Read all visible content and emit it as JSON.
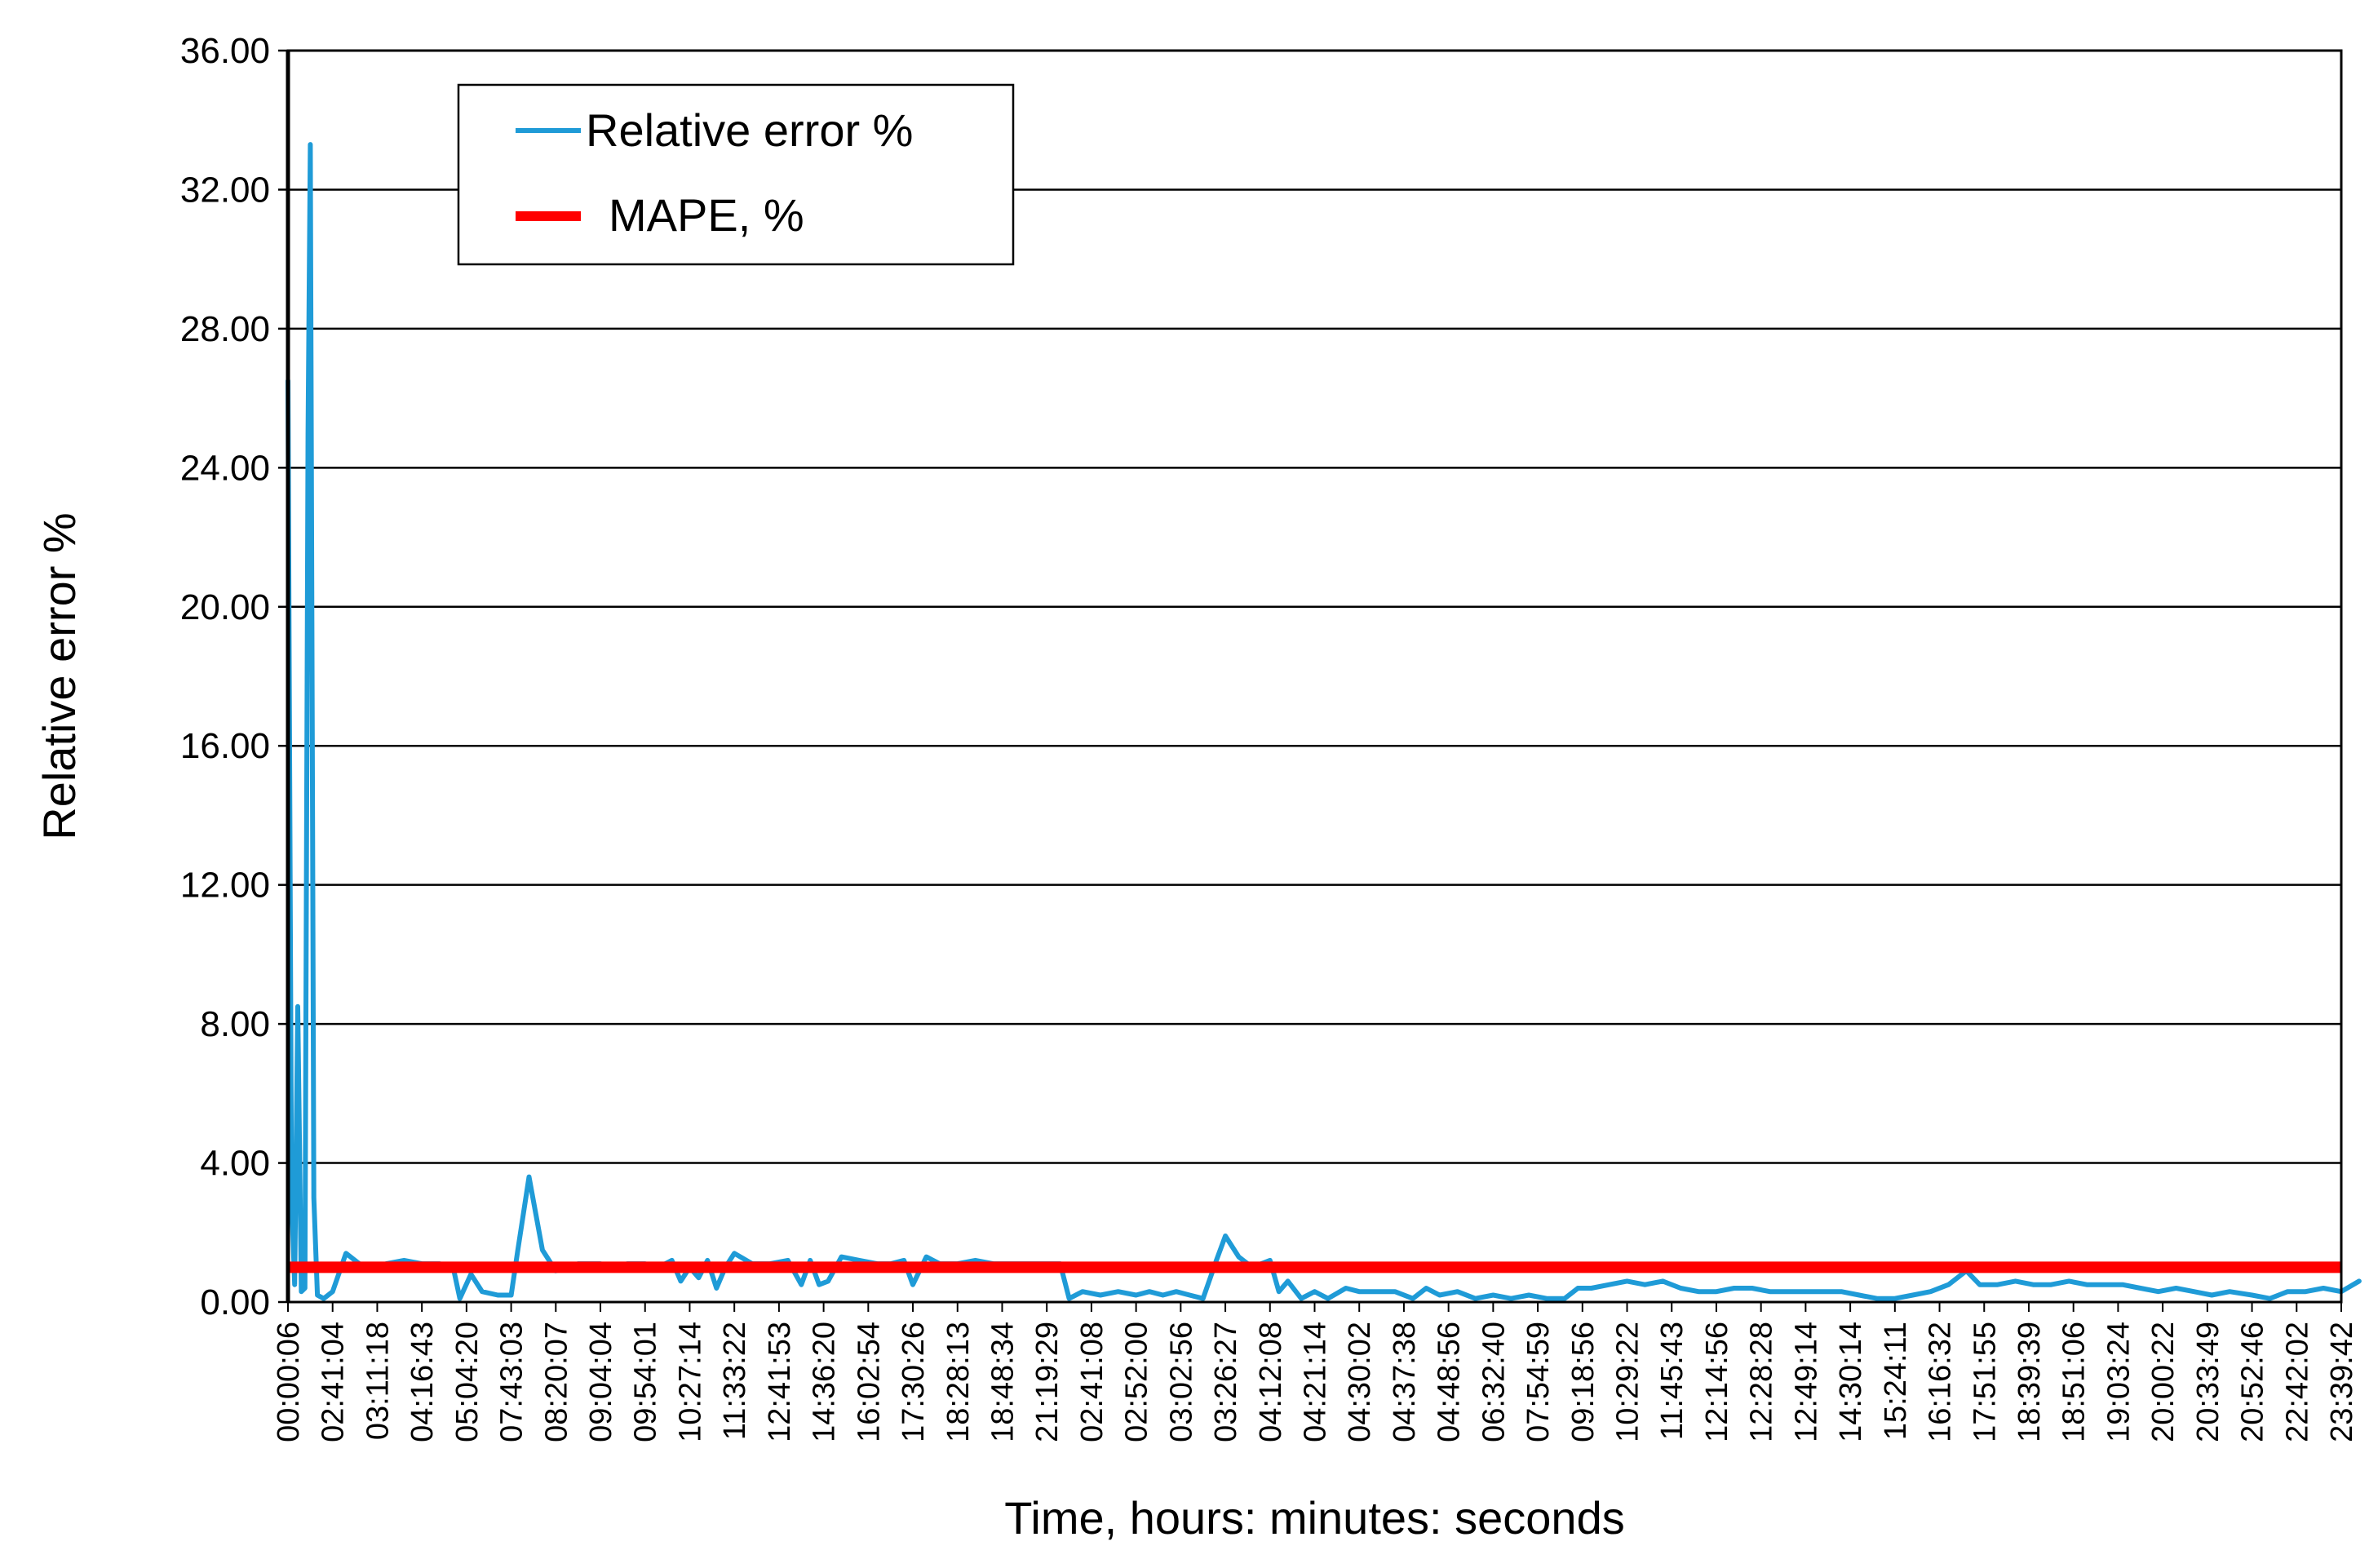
{
  "chart_data": {
    "type": "line",
    "ylabel": "Relative error %",
    "xlabel": "Time, hours: minutes: seconds",
    "ylim": [
      0,
      36
    ],
    "yticks": [
      "0.00",
      "4.00",
      "8.00",
      "12.00",
      "16.00",
      "20.00",
      "24.00",
      "28.00",
      "32.00",
      "36.00"
    ],
    "grid": "horizontal",
    "legend_position": "top-left",
    "categories": [
      "00:00:06",
      "02:41:04",
      "03:11:18",
      "04:16:43",
      "05:04:20",
      "07:43:03",
      "08:20:07",
      "09:04:04",
      "09:54:01",
      "10:27:14",
      "11:33:22",
      "12:41:53",
      "14:36:20",
      "16:02:54",
      "17:30:26",
      "18:28:13",
      "18:48:34",
      "21:19:29",
      "02:41:08",
      "02:52:00",
      "03:02:56",
      "03:26:27",
      "04:12:08",
      "04:21:14",
      "04:30:02",
      "04:37:38",
      "04:48:56",
      "06:32:40",
      "07:54:59",
      "09:18:56",
      "10:29:22",
      "11:45:43",
      "12:14:56",
      "12:28:28",
      "12:49:14",
      "14:30:14",
      "15:24:11",
      "16:16:32",
      "17:51:55",
      "18:39:39",
      "18:51:06",
      "19:03:24",
      "20:00:22",
      "20:33:49",
      "20:52:46",
      "22:42:02",
      "23:39:42"
    ],
    "series": [
      {
        "name": "Relative error %",
        "color": "#1f9bd7",
        "points": [
          [
            0,
            26.5
          ],
          [
            0.08,
            3.0
          ],
          [
            0.15,
            0.5
          ],
          [
            0.22,
            8.5
          ],
          [
            0.3,
            0.3
          ],
          [
            0.38,
            0.4
          ],
          [
            0.45,
            25.0
          ],
          [
            0.5,
            33.3
          ],
          [
            0.58,
            3.0
          ],
          [
            0.66,
            0.2
          ],
          [
            0.8,
            0.1
          ],
          [
            1.0,
            0.3
          ],
          [
            1.3,
            1.4
          ],
          [
            1.6,
            1.1
          ],
          [
            1.9,
            1.0
          ],
          [
            2.2,
            1.1
          ],
          [
            2.6,
            1.2
          ],
          [
            3.0,
            1.1
          ],
          [
            3.4,
            1.1
          ],
          [
            3.7,
            1.0
          ],
          [
            3.85,
            0.1
          ],
          [
            4.1,
            0.8
          ],
          [
            4.35,
            0.3
          ],
          [
            4.7,
            0.2
          ],
          [
            5.0,
            0.2
          ],
          [
            5.15,
            1.5
          ],
          [
            5.4,
            3.6
          ],
          [
            5.7,
            1.5
          ],
          [
            6.0,
            0.9
          ],
          [
            6.5,
            1.1
          ],
          [
            7.0,
            1.1
          ],
          [
            7.3,
            1.0
          ],
          [
            7.6,
            1.1
          ],
          [
            8.0,
            1.1
          ],
          [
            8.3,
            1.0
          ],
          [
            8.6,
            1.2
          ],
          [
            8.8,
            0.6
          ],
          [
            9.0,
            1.0
          ],
          [
            9.2,
            0.7
          ],
          [
            9.4,
            1.2
          ],
          [
            9.6,
            0.4
          ],
          [
            9.8,
            1.0
          ],
          [
            10.0,
            1.4
          ],
          [
            10.4,
            1.1
          ],
          [
            10.8,
            1.1
          ],
          [
            11.2,
            1.2
          ],
          [
            11.5,
            0.5
          ],
          [
            11.7,
            1.2
          ],
          [
            11.9,
            0.5
          ],
          [
            12.1,
            0.6
          ],
          [
            12.4,
            1.3
          ],
          [
            12.8,
            1.2
          ],
          [
            13.2,
            1.1
          ],
          [
            13.5,
            1.1
          ],
          [
            13.8,
            1.2
          ],
          [
            14.0,
            0.5
          ],
          [
            14.3,
            1.3
          ],
          [
            14.6,
            1.1
          ],
          [
            15.0,
            1.1
          ],
          [
            15.4,
            1.2
          ],
          [
            15.8,
            1.1
          ],
          [
            16.2,
            1.1
          ],
          [
            16.6,
            1.1
          ],
          [
            17.0,
            1.1
          ],
          [
            17.3,
            1.1
          ],
          [
            17.5,
            0.1
          ],
          [
            17.8,
            0.3
          ],
          [
            18.2,
            0.2
          ],
          [
            18.6,
            0.3
          ],
          [
            19.0,
            0.2
          ],
          [
            19.3,
            0.3
          ],
          [
            19.6,
            0.2
          ],
          [
            19.9,
            0.3
          ],
          [
            20.2,
            0.2
          ],
          [
            20.5,
            0.1
          ],
          [
            20.8,
            1.2
          ],
          [
            21.0,
            1.9
          ],
          [
            21.3,
            1.3
          ],
          [
            21.6,
            1.0
          ],
          [
            22.0,
            1.2
          ],
          [
            22.2,
            0.3
          ],
          [
            22.4,
            0.6
          ],
          [
            22.7,
            0.1
          ],
          [
            23.0,
            0.3
          ],
          [
            23.3,
            0.1
          ],
          [
            23.7,
            0.4
          ],
          [
            24.0,
            0.3
          ],
          [
            24.4,
            0.3
          ],
          [
            24.8,
            0.3
          ],
          [
            25.2,
            0.1
          ],
          [
            25.5,
            0.4
          ],
          [
            25.8,
            0.2
          ],
          [
            26.2,
            0.3
          ],
          [
            26.6,
            0.1
          ],
          [
            27.0,
            0.2
          ],
          [
            27.4,
            0.1
          ],
          [
            27.8,
            0.2
          ],
          [
            28.2,
            0.1
          ],
          [
            28.6,
            0.1
          ],
          [
            28.9,
            0.4
          ],
          [
            29.2,
            0.4
          ],
          [
            29.6,
            0.5
          ],
          [
            30.0,
            0.6
          ],
          [
            30.4,
            0.5
          ],
          [
            30.8,
            0.6
          ],
          [
            31.2,
            0.4
          ],
          [
            31.6,
            0.3
          ],
          [
            32.0,
            0.3
          ],
          [
            32.4,
            0.4
          ],
          [
            32.8,
            0.4
          ],
          [
            33.2,
            0.3
          ],
          [
            33.6,
            0.3
          ],
          [
            34.0,
            0.3
          ],
          [
            34.4,
            0.3
          ],
          [
            34.8,
            0.3
          ],
          [
            35.2,
            0.2
          ],
          [
            35.6,
            0.1
          ],
          [
            36.0,
            0.1
          ],
          [
            36.4,
            0.2
          ],
          [
            36.8,
            0.3
          ],
          [
            37.2,
            0.5
          ],
          [
            37.6,
            0.9
          ],
          [
            37.9,
            0.5
          ],
          [
            38.3,
            0.5
          ],
          [
            38.7,
            0.6
          ],
          [
            39.1,
            0.5
          ],
          [
            39.5,
            0.5
          ],
          [
            39.9,
            0.6
          ],
          [
            40.3,
            0.5
          ],
          [
            40.7,
            0.5
          ],
          [
            41.1,
            0.5
          ],
          [
            41.5,
            0.4
          ],
          [
            41.9,
            0.3
          ],
          [
            42.3,
            0.4
          ],
          [
            42.7,
            0.3
          ],
          [
            43.1,
            0.2
          ],
          [
            43.5,
            0.3
          ],
          [
            44.0,
            0.2
          ],
          [
            44.4,
            0.1
          ],
          [
            44.8,
            0.3
          ],
          [
            45.2,
            0.3
          ],
          [
            45.6,
            0.4
          ],
          [
            46.0,
            0.3
          ],
          [
            46.4,
            0.6
          ]
        ]
      },
      {
        "name": "MAPE, %",
        "color": "#ff0000",
        "value": 1.0
      }
    ]
  }
}
